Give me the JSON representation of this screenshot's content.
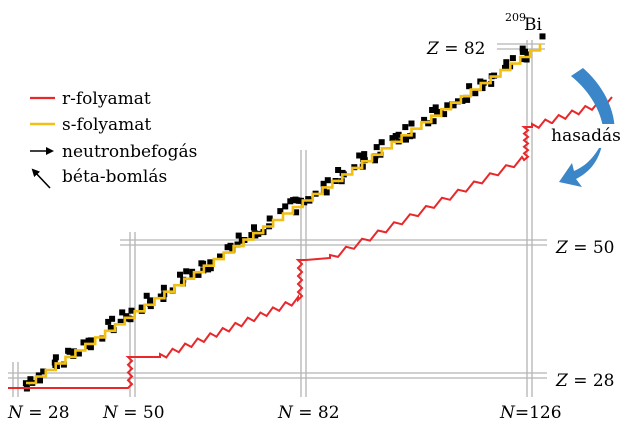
{
  "legend": {
    "r_process": "r-folyamat",
    "s_process": "s-folyamat",
    "neutron_capture": "neutronbefogás",
    "beta_decay": "béta-bomlás"
  },
  "isotope_label": {
    "mass_number": "209",
    "symbol": "Bi"
  },
  "fission_label": "hasadás",
  "z_labels": [
    {
      "var": "Z",
      "eq": " = 82"
    },
    {
      "var": "Z",
      "eq": " = 50"
    },
    {
      "var": "Z",
      "eq": " = 28"
    }
  ],
  "n_labels": [
    {
      "var": "N",
      "eq": " = 28"
    },
    {
      "var": "N",
      "eq": " = 50"
    },
    {
      "var": "N",
      "eq": " = 82"
    },
    {
      "var": "N",
      "eq": "=126"
    }
  ],
  "colors": {
    "r_process": "#e8282a",
    "s_process": "#f2c014",
    "stable": "#000000",
    "magic_line": "#b4b4b4",
    "fission_arrow": "#3a86c8"
  },
  "icons": [
    "right-arrow-icon",
    "diagonal-arrow-icon",
    "curved-arrow-icon"
  ]
}
